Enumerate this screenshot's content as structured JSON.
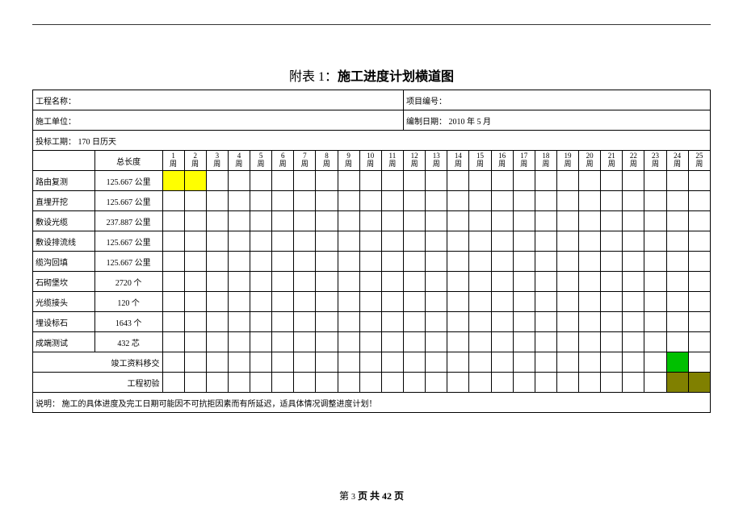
{
  "title_prefix": "附表 1：",
  "title": "施工进度计划横道图",
  "header": {
    "project_name_label": "工程名称：",
    "project_name_value": "",
    "project_no_label": "项目编号：",
    "project_no_value": "",
    "contractor_label": "施工单位：",
    "contractor_value": "",
    "compile_date_label": "编制日期：",
    "compile_date_value": "2010 年 5 月",
    "duration_label": "投标工期：",
    "duration_value": "170 日历天",
    "length_header": "总长度"
  },
  "weeks": [
    "1",
    "2",
    "3",
    "4",
    "5",
    "6",
    "7",
    "8",
    "9",
    "10",
    "11",
    "12",
    "13",
    "14",
    "15",
    "16",
    "17",
    "18",
    "19",
    "20",
    "21",
    "22",
    "23",
    "24",
    "25"
  ],
  "week_suffix": "周",
  "colors": {
    "yellow": "#ffff00",
    "green": "#00c000",
    "olive": "#808000",
    "border": "#000000",
    "background": "#ffffff"
  },
  "rows": [
    {
      "name": "路由复测",
      "length": "125.667 公里",
      "bars": [
        {
          "from": 1,
          "to": 2,
          "color": "yellow"
        }
      ]
    },
    {
      "name": "直埋开挖",
      "length": "125.667 公里",
      "bars": []
    },
    {
      "name": "敷设光缆",
      "length": "237.887 公里",
      "bars": []
    },
    {
      "name": "敷设排流线",
      "length": "125.667 公里",
      "bars": []
    },
    {
      "name": "缆沟回填",
      "length": "125.667 公里",
      "bars": []
    },
    {
      "name": "石砌堡坎",
      "length": "2720 个",
      "bars": []
    },
    {
      "name": "光缆接头",
      "length": "120 个",
      "bars": []
    },
    {
      "name": "埋设标石",
      "length": "1643 个",
      "bars": []
    },
    {
      "name": "成端测试",
      "length": "432 芯",
      "bars": []
    },
    {
      "name_span": "竣工资料移交",
      "bars": [
        {
          "from": 24,
          "to": 24,
          "color": "green"
        }
      ]
    },
    {
      "name_span": "工程初验",
      "bars": [
        {
          "from": 24,
          "to": 25,
          "color": "olive"
        }
      ]
    }
  ],
  "note_label": "说明：",
  "note_text": "施工的具体进度及完工日期可能因不可抗拒因素而有所延迟，适具体情况调整进度计划！",
  "footer": {
    "prefix": "第",
    "page": "3",
    "mid": "页 共",
    "total": "42",
    "suffix": "页"
  }
}
